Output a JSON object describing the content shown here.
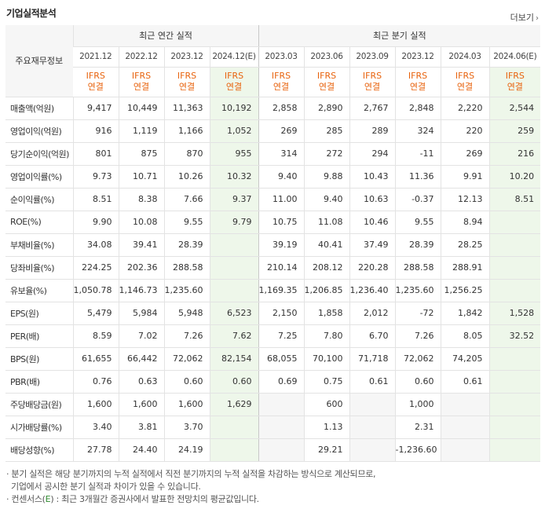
{
  "header": {
    "title": "기업실적분석",
    "more_label": "더보기",
    "more_icon": "chevron-right-icon"
  },
  "table": {
    "row_head": "주요재무정보",
    "group_annual": "최근 연간 실적",
    "group_quarter": "최근 분기 실적",
    "periods": [
      "2021.12",
      "2022.12",
      "2023.12",
      "2024.12(E)",
      "2023.03",
      "2023.06",
      "2023.09",
      "2023.12",
      "2024.03",
      "2024.06(E)"
    ],
    "standard_line1": "IFRS",
    "standard_line2": "연결",
    "rows": [
      {
        "label": "매출액(억원)",
        "values": [
          "9,417",
          "10,449",
          "11,363",
          "10,192",
          "2,858",
          "2,890",
          "2,767",
          "2,848",
          "2,220",
          "2,544"
        ]
      },
      {
        "label": "영업이익(억원)",
        "values": [
          "916",
          "1,119",
          "1,166",
          "1,052",
          "269",
          "285",
          "289",
          "324",
          "220",
          "259"
        ]
      },
      {
        "label": "당기순이익(억원)",
        "values": [
          "801",
          "875",
          "870",
          "955",
          "314",
          "272",
          "294",
          "-11",
          "269",
          "216"
        ]
      },
      {
        "label": "영업이익률(%)",
        "values": [
          "9.73",
          "10.71",
          "10.26",
          "10.32",
          "9.40",
          "9.88",
          "10.43",
          "11.36",
          "9.91",
          "10.20"
        ]
      },
      {
        "label": "순이익률(%)",
        "values": [
          "8.51",
          "8.38",
          "7.66",
          "9.37",
          "11.00",
          "9.40",
          "10.63",
          "-0.37",
          "12.13",
          "8.51"
        ]
      },
      {
        "label": "ROE(%)",
        "values": [
          "9.90",
          "10.08",
          "9.55",
          "9.79",
          "10.75",
          "11.08",
          "10.46",
          "9.55",
          "8.94",
          ""
        ]
      },
      {
        "label": "부채비율(%)",
        "values": [
          "34.08",
          "39.41",
          "28.39",
          "",
          "39.19",
          "40.41",
          "37.49",
          "28.39",
          "28.25",
          ""
        ]
      },
      {
        "label": "당좌비율(%)",
        "values": [
          "224.25",
          "202.36",
          "288.58",
          "",
          "210.14",
          "208.12",
          "220.28",
          "288.58",
          "288.91",
          ""
        ]
      },
      {
        "label": "유보율(%)",
        "values": [
          "1,050.78",
          "1,146.73",
          "1,235.60",
          "",
          "1,169.35",
          "1,206.85",
          "1,236.40",
          "1,235.60",
          "1,256.25",
          ""
        ]
      },
      {
        "label": "EPS(원)",
        "values": [
          "5,479",
          "5,984",
          "5,948",
          "6,523",
          "2,150",
          "1,858",
          "2,012",
          "-72",
          "1,842",
          "1,528"
        ]
      },
      {
        "label": "PER(배)",
        "values": [
          "8.59",
          "7.02",
          "7.26",
          "7.62",
          "7.25",
          "7.80",
          "6.70",
          "7.26",
          "8.05",
          "32.52"
        ]
      },
      {
        "label": "BPS(원)",
        "values": [
          "61,655",
          "66,442",
          "72,062",
          "82,154",
          "68,055",
          "70,100",
          "71,718",
          "72,062",
          "74,205",
          ""
        ]
      },
      {
        "label": "PBR(배)",
        "values": [
          "0.76",
          "0.63",
          "0.60",
          "0.60",
          "0.69",
          "0.75",
          "0.61",
          "0.60",
          "0.61",
          ""
        ]
      },
      {
        "label": "주당배당금(원)",
        "values": [
          "1,600",
          "1,600",
          "1,600",
          "1,629",
          "",
          "600",
          "",
          "1,000",
          "",
          ""
        ]
      },
      {
        "label": "시가배당률(%)",
        "values": [
          "3.40",
          "3.81",
          "3.70",
          "",
          "",
          "1.13",
          "",
          "2.31",
          "",
          ""
        ]
      },
      {
        "label": "배당성향(%)",
        "values": [
          "27.78",
          "24.40",
          "24.19",
          "",
          "",
          "29.21",
          "",
          "-1,236.60",
          "",
          ""
        ]
      }
    ]
  },
  "notes": {
    "line1": "· 분기 실적은 해당 분기까지의 누적 실적에서 직전 분기까지의 누적 실적을 차감하는 방식으로 계산되므로,",
    "line2": "기업에서 공시한 분기 실적과 차이가 있을 수 있습니다.",
    "line3_prefix": "· 컨센서스(",
    "line3_mark": "E",
    "line3_suffix": ") : 최근 3개월간 증권사에서 발표한 전망치의 평균값입니다."
  },
  "colors": {
    "accent_orange": "#e8630e",
    "negative_red": "#d0021b",
    "estimate_bg": "#eef7ea",
    "estimate_mark": "#2e8b2e"
  }
}
